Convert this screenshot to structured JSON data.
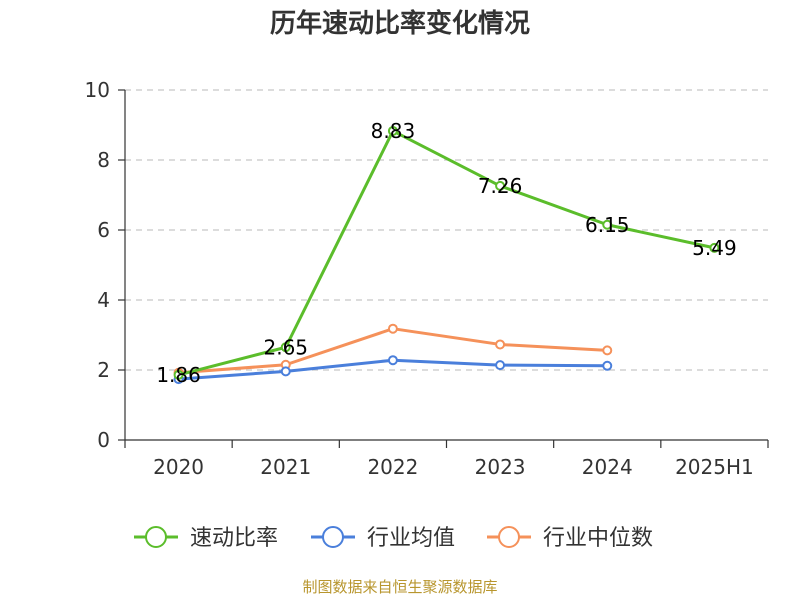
{
  "chart_data": {
    "type": "line",
    "title": "历年速动比率变化情况",
    "categories": [
      "2020",
      "2021",
      "2022",
      "2023",
      "2024",
      "2025H1"
    ],
    "ylim": [
      0,
      10
    ],
    "yticks": [
      0,
      2,
      4,
      6,
      8,
      10
    ],
    "grid": "horizontal-dashed",
    "legend_position": "bottom",
    "series": [
      {
        "name": "速动比率",
        "color": "#5bbd2b",
        "values": [
          1.86,
          2.65,
          8.83,
          7.26,
          6.15,
          5.49
        ],
        "labels": [
          "1.86",
          "2.65",
          "8.83",
          "7.26",
          "6.15",
          "5.49"
        ]
      },
      {
        "name": "行业均值",
        "color": "#4a7fdb",
        "values": [
          1.74,
          1.96,
          2.28,
          2.14,
          2.12,
          null
        ]
      },
      {
        "name": "行业中位数",
        "color": "#f5915a",
        "values": [
          1.92,
          2.15,
          3.18,
          2.73,
          2.56,
          null
        ]
      }
    ]
  },
  "source_text": "制图数据来自恒生聚源数据库"
}
